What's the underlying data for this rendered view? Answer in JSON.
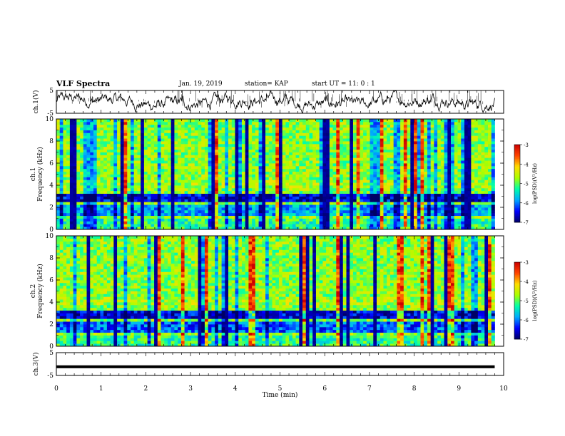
{
  "header": {
    "title": "VLF Spectra",
    "date": "Jan. 19, 2019",
    "station": "station= KAP",
    "start": "start UT =  11: 0  : 1"
  },
  "chart_data": [
    {
      "type": "line",
      "ylabel": "ch.1(V)",
      "ylim": [
        -5,
        5
      ],
      "yticks": [
        "5",
        "-5"
      ],
      "xlim": [
        0,
        10
      ]
    },
    {
      "type": "heatmap",
      "ylabel": "ch.1\nFrequency (kHz)",
      "ylim": [
        0,
        10
      ],
      "yticks": [
        "0",
        "2",
        "4",
        "6",
        "8",
        "10"
      ],
      "xlim": [
        0,
        10
      ],
      "data_x_end": 9.8,
      "colorbar": {
        "label": "log(PSD)(V²/Hz)",
        "ticks": [
          "-3",
          "-4",
          "-5",
          "-6",
          "-7"
        ],
        "range": [
          -7,
          -3
        ]
      }
    },
    {
      "type": "heatmap",
      "ylabel": "ch.2\nFrequency (kHz)",
      "ylim": [
        0,
        10
      ],
      "yticks": [
        "0",
        "2",
        "4",
        "6",
        "8",
        "10"
      ],
      "xlim": [
        0,
        10
      ],
      "data_x_end": 9.8,
      "colorbar": {
        "label": "log(PSD)(V²/Hz)",
        "ticks": [
          "-3",
          "-4",
          "-5",
          "-6",
          "-7"
        ],
        "range": [
          -7,
          -3
        ]
      }
    },
    {
      "type": "line",
      "ylabel": "ch.3(V)",
      "ylim": [
        -5,
        5
      ],
      "yticks": [
        "5",
        "-5"
      ],
      "xlim": [
        0,
        10
      ],
      "xlabel": "Time (min)",
      "xticks": [
        "0",
        "1",
        "2",
        "3",
        "4",
        "5",
        "6",
        "7",
        "8",
        "9",
        "10"
      ],
      "constant_value": -1.2
    }
  ],
  "colors": {
    "colormap": [
      "#000066",
      "#0000ff",
      "#00aaff",
      "#00ffaa",
      "#aaff00",
      "#ffdd00",
      "#ff4400",
      "#cc0000"
    ]
  }
}
